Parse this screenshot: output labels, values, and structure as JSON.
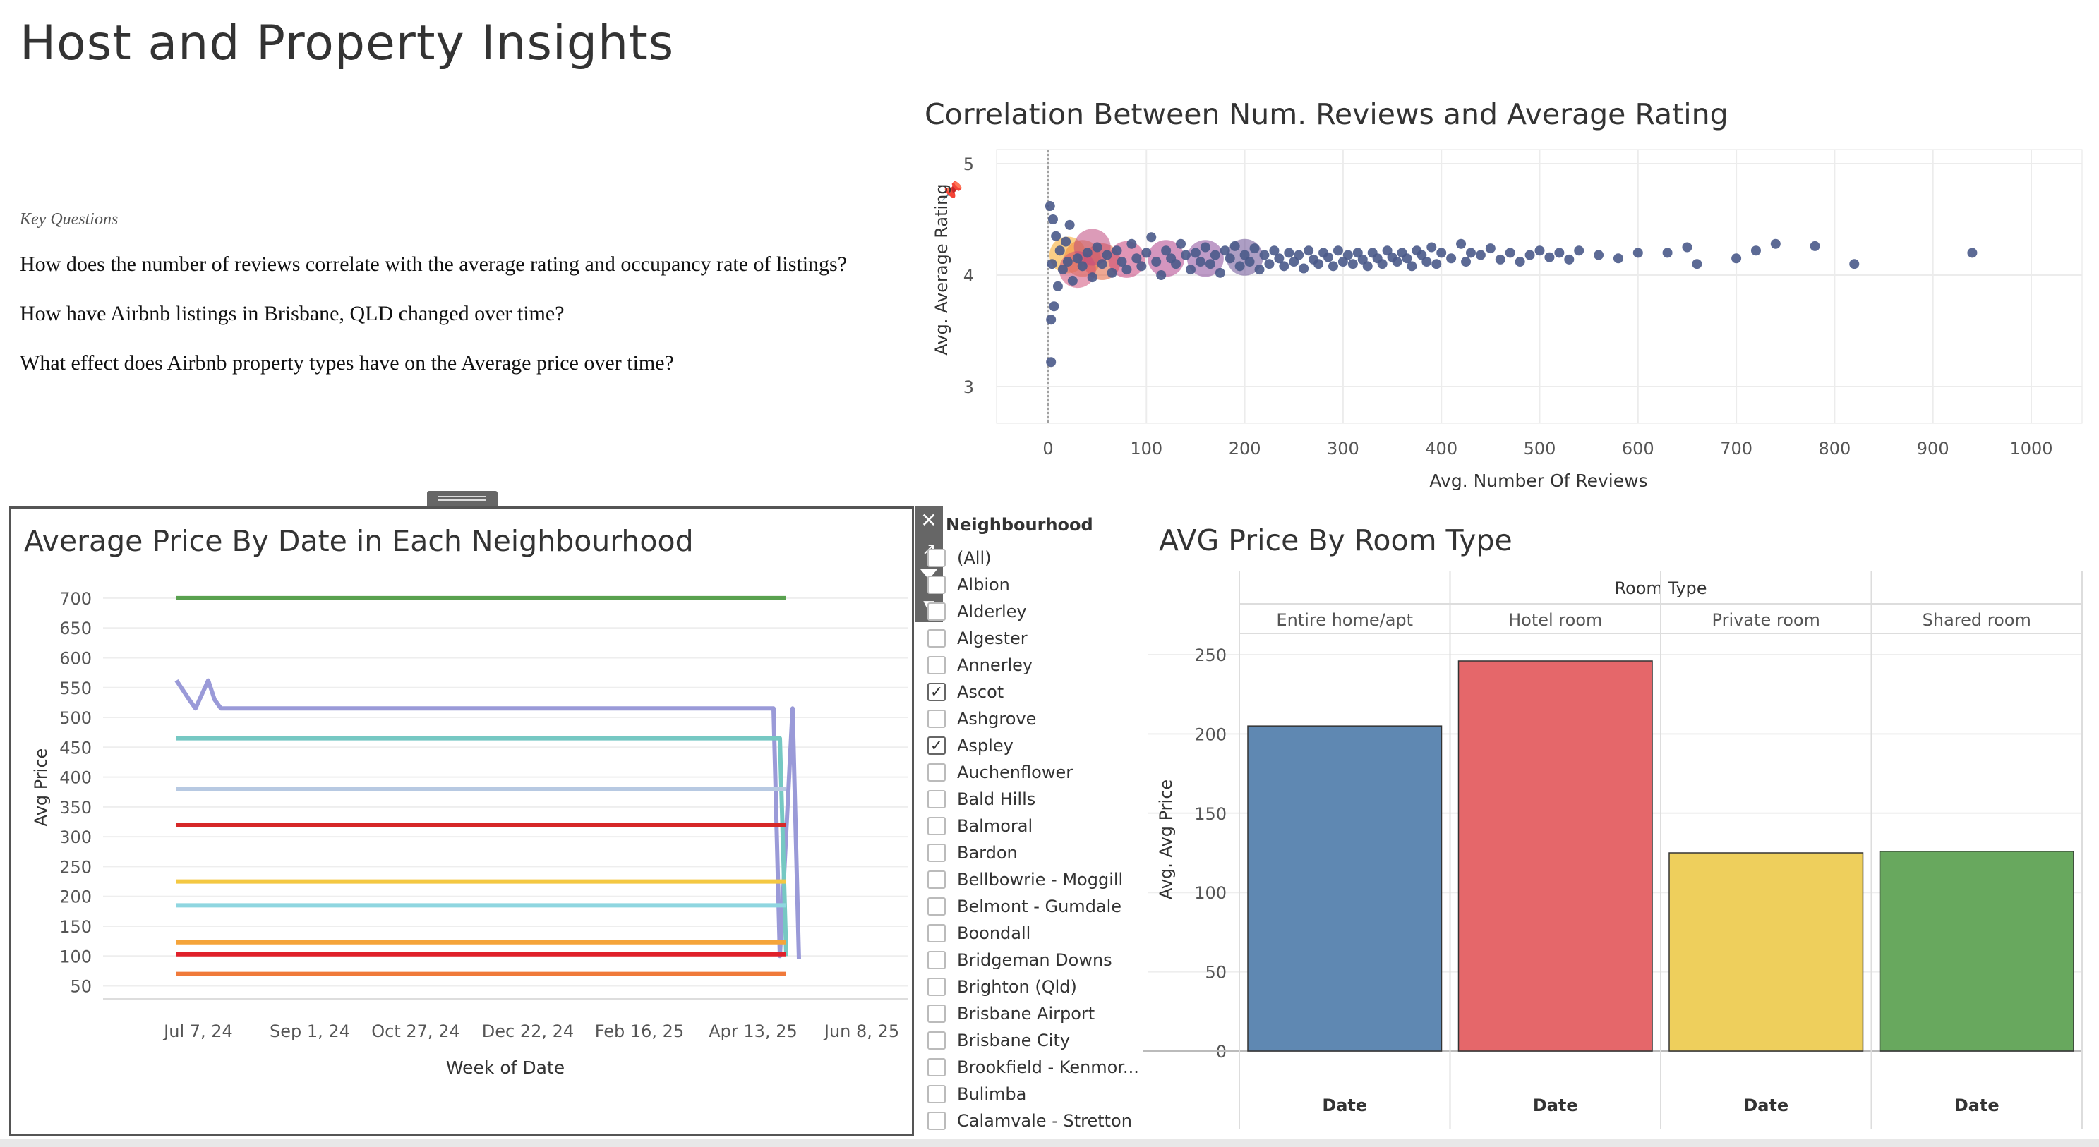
{
  "page": {
    "title": "Host and Property Insights"
  },
  "key_questions": {
    "heading": "Key Questions",
    "items": [
      "How does the number of reviews correlate with the average rating and occupancy rate of listings?",
      "How have Airbnb listings in Brisbane, QLD changed over time?",
      "What effect does Airbnb property types have on the Average price over time?"
    ]
  },
  "chart_data": [
    {
      "type": "scatter",
      "title": "Correlation Between Num. Reviews and Average Rating",
      "xlabel": "Avg. Number Of Reviews",
      "ylabel": "Avg. Average Rating",
      "xlim": [
        0,
        1000
      ],
      "ylim": [
        3,
        5
      ],
      "x_ticks": [
        "0",
        "100",
        "200",
        "300",
        "400",
        "500",
        "600",
        "700",
        "800",
        "900",
        "1000"
      ],
      "y_ticks": [
        "5",
        "4",
        "3"
      ],
      "grid": true,
      "colors": {
        "points": "#4a5a8a",
        "dense_low": "#b0408a",
        "dense_high": "#f5a623"
      },
      "points": [
        [
          2,
          4.62
        ],
        [
          5,
          4.5
        ],
        [
          8,
          4.35
        ],
        [
          4,
          4.1
        ],
        [
          10,
          3.9
        ],
        [
          3,
          3.6
        ],
        [
          6,
          3.72
        ],
        [
          12,
          4.22
        ],
        [
          15,
          4.05
        ],
        [
          18,
          4.3
        ],
        [
          20,
          4.12
        ],
        [
          25,
          3.95
        ],
        [
          22,
          4.45
        ],
        [
          30,
          4.15
        ],
        [
          35,
          4.08
        ],
        [
          40,
          4.2
        ],
        [
          45,
          3.98
        ],
        [
          50,
          4.25
        ],
        [
          55,
          4.1
        ],
        [
          60,
          4.18
        ],
        [
          65,
          4.02
        ],
        [
          70,
          4.22
        ],
        [
          75,
          4.12
        ],
        [
          80,
          4.05
        ],
        [
          85,
          4.28
        ],
        [
          90,
          4.15
        ],
        [
          95,
          4.08
        ],
        [
          100,
          4.2
        ],
        [
          105,
          4.34
        ],
        [
          110,
          4.12
        ],
        [
          115,
          4.0
        ],
        [
          120,
          4.22
        ],
        [
          125,
          4.15
        ],
        [
          130,
          4.1
        ],
        [
          135,
          4.28
        ],
        [
          140,
          4.18
        ],
        [
          145,
          4.05
        ],
        [
          150,
          4.2
        ],
        [
          155,
          4.12
        ],
        [
          160,
          4.25
        ],
        [
          165,
          4.1
        ],
        [
          170,
          4.18
        ],
        [
          175,
          4.02
        ],
        [
          180,
          4.22
        ],
        [
          185,
          4.15
        ],
        [
          190,
          4.26
        ],
        [
          195,
          4.08
        ],
        [
          200,
          4.18
        ],
        [
          205,
          4.12
        ],
        [
          210,
          4.24
        ],
        [
          215,
          4.05
        ],
        [
          220,
          4.18
        ],
        [
          225,
          4.1
        ],
        [
          230,
          4.22
        ],
        [
          235,
          4.15
        ],
        [
          240,
          4.08
        ],
        [
          245,
          4.2
        ],
        [
          250,
          4.12
        ],
        [
          255,
          4.18
        ],
        [
          260,
          4.06
        ],
        [
          265,
          4.22
        ],
        [
          270,
          4.14
        ],
        [
          275,
          4.1
        ],
        [
          280,
          4.2
        ],
        [
          285,
          4.16
        ],
        [
          290,
          4.08
        ],
        [
          295,
          4.22
        ],
        [
          300,
          4.12
        ],
        [
          305,
          4.18
        ],
        [
          310,
          4.1
        ],
        [
          315,
          4.2
        ],
        [
          320,
          4.14
        ],
        [
          325,
          4.08
        ],
        [
          330,
          4.2
        ],
        [
          335,
          4.15
        ],
        [
          340,
          4.1
        ],
        [
          345,
          4.22
        ],
        [
          350,
          4.16
        ],
        [
          355,
          4.12
        ],
        [
          360,
          4.2
        ],
        [
          365,
          4.15
        ],
        [
          370,
          4.08
        ],
        [
          375,
          4.22
        ],
        [
          380,
          4.18
        ],
        [
          385,
          4.12
        ],
        [
          390,
          4.25
        ],
        [
          395,
          4.1
        ],
        [
          400,
          4.2
        ],
        [
          410,
          4.15
        ],
        [
          420,
          4.28
        ],
        [
          425,
          4.12
        ],
        [
          430,
          4.2
        ],
        [
          440,
          4.18
        ],
        [
          450,
          4.24
        ],
        [
          460,
          4.14
        ],
        [
          470,
          4.2
        ],
        [
          480,
          4.12
        ],
        [
          490,
          4.18
        ],
        [
          500,
          4.22
        ],
        [
          510,
          4.16
        ],
        [
          520,
          4.2
        ],
        [
          530,
          4.14
        ],
        [
          540,
          4.22
        ],
        [
          560,
          4.18
        ],
        [
          580,
          4.15
        ],
        [
          600,
          4.2
        ],
        [
          630,
          4.2
        ],
        [
          650,
          4.25
        ],
        [
          660,
          4.1
        ],
        [
          700,
          4.15
        ],
        [
          720,
          4.22
        ],
        [
          740,
          4.28
        ],
        [
          780,
          4.26
        ],
        [
          820,
          4.1
        ],
        [
          940,
          4.2
        ],
        [
          3,
          3.22
        ]
      ]
    },
    {
      "type": "line",
      "title": "Average Price By Date in Each Neighbourhood",
      "xlabel": "Week of Date",
      "ylabel": "Avg Price",
      "x_ticks": [
        "Jul 7, 24",
        "Sep 1, 24",
        "Oct 27, 24",
        "Dec 22, 24",
        "Feb 16, 25",
        "Apr 13, 25",
        "Jun 8, 25"
      ],
      "y_ticks": [
        50,
        100,
        150,
        200,
        250,
        300,
        350,
        400,
        450,
        500,
        550,
        600,
        650,
        700
      ],
      "ylim": [
        30,
        720
      ],
      "xlim": [
        0,
        57
      ],
      "series": [
        {
          "color": "#59a14f",
          "points": [
            [
              3,
              700
            ],
            [
              51,
              700
            ]
          ]
        },
        {
          "color": "#9a9ad8",
          "points": [
            [
              3,
              562
            ],
            [
              4,
              530
            ],
            [
              4.5,
              515
            ],
            [
              5.5,
              562
            ],
            [
              6,
              530
            ],
            [
              6.5,
              515
            ],
            [
              50,
              515
            ],
            [
              50.5,
              100
            ],
            [
              51.5,
              515
            ],
            [
              52,
              95
            ]
          ]
        },
        {
          "color": "#76c8c3",
          "points": [
            [
              3,
              465
            ],
            [
              50.5,
              465
            ],
            [
              51,
              100
            ]
          ]
        },
        {
          "color": "#b7c9e2",
          "points": [
            [
              3,
              380
            ],
            [
              51,
              380
            ]
          ]
        },
        {
          "color": "#d62728",
          "points": [
            [
              3,
              320
            ],
            [
              51,
              320
            ]
          ]
        },
        {
          "color": "#f4c842",
          "points": [
            [
              3,
              225
            ],
            [
              51,
              225
            ]
          ]
        },
        {
          "color": "#8fd6e0",
          "points": [
            [
              3,
              185
            ],
            [
              51,
              185
            ]
          ]
        },
        {
          "color": "#f5a43a",
          "points": [
            [
              3,
              123
            ],
            [
              51,
              123
            ]
          ]
        },
        {
          "color": "#e0202a",
          "points": [
            [
              3,
              103
            ],
            [
              51,
              103
            ]
          ]
        },
        {
          "color": "#f07a3a",
          "points": [
            [
              3,
              70
            ],
            [
              51,
              70
            ]
          ]
        }
      ]
    },
    {
      "type": "bar",
      "title": "AVG Price By Room Type",
      "header": "Room Type",
      "categories": [
        "Entire home/apt",
        "Hotel room",
        "Private room",
        "Shared room"
      ],
      "values": [
        205,
        246,
        125,
        126
      ],
      "colors": [
        "#5f88b2",
        "#e5676a",
        "#eecf5c",
        "#68a85e"
      ],
      "ylabel": "Avg. Avg Price",
      "ylim": [
        0,
        250
      ],
      "y_ticks": [
        0,
        50,
        100,
        150,
        200,
        250
      ],
      "x_footer": [
        "Date",
        "Date",
        "Date",
        "Date"
      ]
    }
  ],
  "neighbourhood_filter": {
    "title": "Neighbourhood",
    "items": [
      {
        "label": "(All)",
        "checked": false
      },
      {
        "label": "Albion",
        "checked": false
      },
      {
        "label": "Alderley",
        "checked": false
      },
      {
        "label": "Algester",
        "checked": false
      },
      {
        "label": "Annerley",
        "checked": false
      },
      {
        "label": "Ascot",
        "checked": true
      },
      {
        "label": "Ashgrove",
        "checked": false
      },
      {
        "label": "Aspley",
        "checked": true
      },
      {
        "label": "Auchenflower",
        "checked": false
      },
      {
        "label": "Bald Hills",
        "checked": false
      },
      {
        "label": "Balmoral",
        "checked": false
      },
      {
        "label": "Bardon",
        "checked": false
      },
      {
        "label": "Bellbowrie - Moggill",
        "checked": false
      },
      {
        "label": "Belmont - Gumdale",
        "checked": false
      },
      {
        "label": "Boondall",
        "checked": false
      },
      {
        "label": "Bridgeman Downs",
        "checked": false
      },
      {
        "label": "Brighton (Qld)",
        "checked": false
      },
      {
        "label": "Brisbane Airport",
        "checked": false
      },
      {
        "label": "Brisbane City",
        "checked": false
      },
      {
        "label": "Brookfield - Kenmor...",
        "checked": false
      },
      {
        "label": "Bulimba",
        "checked": false
      },
      {
        "label": "Calamvale - Stretton",
        "checked": false
      }
    ]
  },
  "toolbar": {
    "close_icon": "close-icon",
    "open_icon": "external-link-icon",
    "filter_icon": "funnel-icon",
    "more_icon": "caret-down-icon"
  }
}
